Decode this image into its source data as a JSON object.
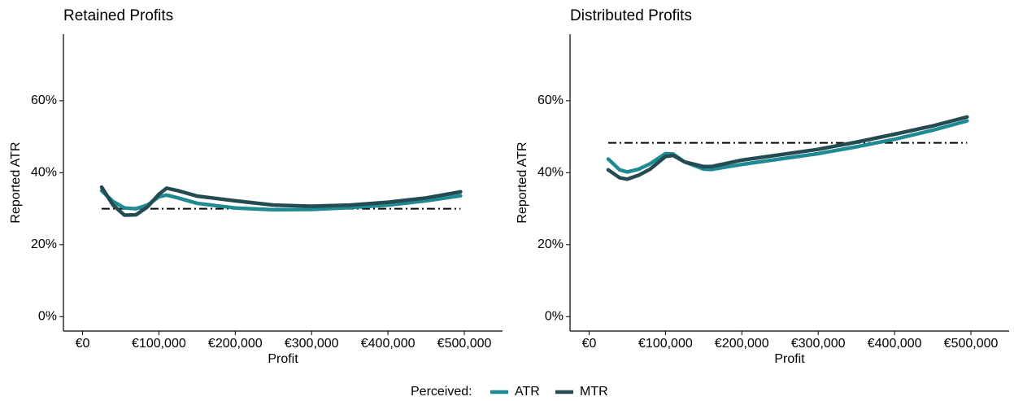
{
  "chart_data": [
    {
      "type": "line",
      "title": "Retained Profits",
      "x_label": "Profit",
      "y_label": "Reported ATR",
      "x": [
        25000,
        40000,
        55000,
        70000,
        85000,
        100000,
        110000,
        125000,
        150000,
        200000,
        250000,
        300000,
        350000,
        400000,
        450000,
        495000
      ],
      "series": [
        {
          "name": "ATR",
          "color": "#1f8a91",
          "values": [
            35,
            32,
            30.2,
            30,
            31,
            33.3,
            33.8,
            33,
            31.5,
            30.2,
            29.7,
            29.8,
            30.3,
            31,
            32.2,
            33.6
          ]
        },
        {
          "name": "MTR",
          "color": "#244a52",
          "values": [
            36,
            31,
            28.2,
            28.3,
            30.5,
            34,
            35.7,
            35,
            33.5,
            32.2,
            31,
            30.7,
            31,
            31.8,
            33,
            34.7
          ]
        }
      ],
      "reference_line": {
        "y": 30,
        "x_start": 25000,
        "x_end": 495000
      },
      "xlim": [
        -25000,
        550000
      ],
      "ylim": [
        -4,
        78.5
      ],
      "xticks": [
        {
          "value": 0,
          "label": "€0"
        },
        {
          "value": 100000,
          "label": "€100,000"
        },
        {
          "value": 200000,
          "label": "€200,000"
        },
        {
          "value": 300000,
          "label": "€300,000"
        },
        {
          "value": 400000,
          "label": "€400,000"
        },
        {
          "value": 500000,
          "label": "€500,000"
        }
      ],
      "yticks": [
        {
          "value": 0,
          "label": "0%"
        },
        {
          "value": 20,
          "label": "20%"
        },
        {
          "value": 40,
          "label": "40%"
        },
        {
          "value": 60,
          "label": "60%"
        }
      ]
    },
    {
      "type": "line",
      "title": "Distributed Profits",
      "x_label": "Profit",
      "y_label": "Reported ATR",
      "x": [
        25000,
        40000,
        50000,
        65000,
        80000,
        100000,
        110000,
        125000,
        150000,
        160000,
        200000,
        250000,
        300000,
        350000,
        400000,
        450000,
        495000
      ],
      "series": [
        {
          "name": "ATR",
          "color": "#1f8a91",
          "values": [
            43.8,
            40.8,
            40.2,
            41,
            42.5,
            45.3,
            45.2,
            43,
            41,
            40.9,
            42.3,
            43.8,
            45.3,
            47.2,
            49.3,
            51.8,
            54.4
          ]
        },
        {
          "name": "MTR",
          "color": "#244a52",
          "values": [
            40.8,
            38.6,
            38.2,
            39.3,
            41,
            44.5,
            44.8,
            43,
            41.7,
            41.7,
            43.5,
            45,
            46.5,
            48.5,
            50.7,
            53,
            55.5
          ]
        }
      ],
      "reference_line": {
        "y": 48.3,
        "x_start": 25000,
        "x_end": 495000
      },
      "xlim": [
        -25000,
        550000
      ],
      "ylim": [
        -4,
        78.5
      ],
      "xticks": [
        {
          "value": 0,
          "label": "€0"
        },
        {
          "value": 100000,
          "label": "€100,000"
        },
        {
          "value": 200000,
          "label": "€200,000"
        },
        {
          "value": 300000,
          "label": "€300,000"
        },
        {
          "value": 400000,
          "label": "€400,000"
        },
        {
          "value": 500000,
          "label": "€500,000"
        }
      ],
      "yticks": [
        {
          "value": 0,
          "label": "0%"
        },
        {
          "value": 20,
          "label": "20%"
        },
        {
          "value": 40,
          "label": "40%"
        },
        {
          "value": 60,
          "label": "60%"
        }
      ]
    }
  ],
  "legend": {
    "title": "Perceived:",
    "position": "bottom"
  }
}
